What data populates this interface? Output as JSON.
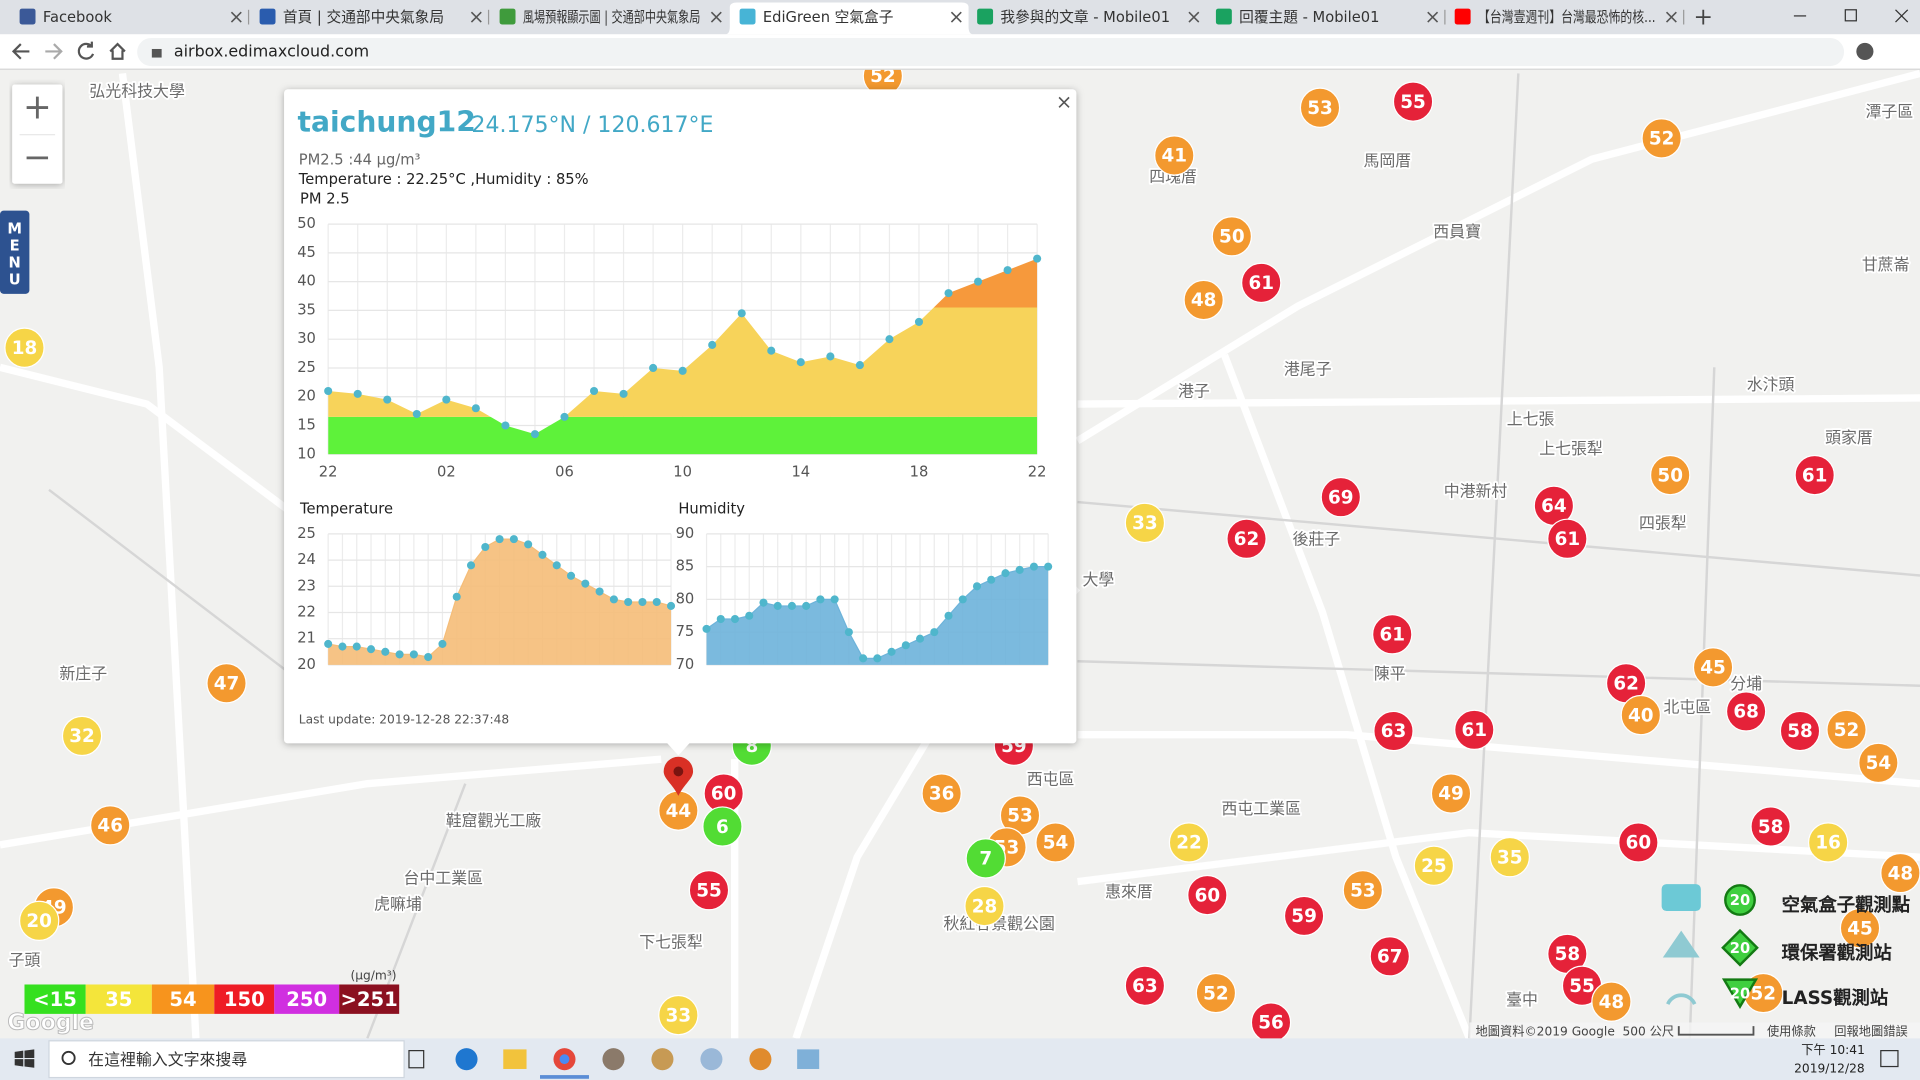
{
  "browser": {
    "tabs": [
      "Facebook",
      "首頁 | 交通部中央氣象局",
      "風場預報顯示圖 | 交通部中央氣象局",
      "EdiGreen 空氣盒子",
      "我參與的文章 - Mobile01",
      "回覆主題 - Mobile01",
      "【台灣壹週刊】台灣最恐怖的核..."
    ],
    "address": "airbox.edimaxcloud.com"
  },
  "map": {
    "zoom_in": "+",
    "zoom_out": "−",
    "menu": "MENU",
    "google": "Google",
    "attribution": "地圖資料©2019 Google",
    "scale": "500 公尺",
    "terms": "使用條款",
    "report": "回報地圖錯誤",
    "marker_colors": [
      {
        "max": 15.4,
        "color": "#52dc34"
      },
      {
        "max": 35.4,
        "color": "#f6d547"
      },
      {
        "max": 54.4,
        "color": "#f3992f"
      },
      {
        "max": 150.4,
        "color": "#e52239"
      }
    ],
    "markers": [
      52,
      53,
      55,
      52,
      41,
      50,
      61,
      48,
      18,
      50,
      61,
      69,
      33,
      62,
      64,
      61,
      61,
      45,
      62,
      40,
      68,
      63,
      61,
      58,
      52,
      54,
      47,
      32,
      59,
      8,
      60,
      44,
      6,
      36,
      53,
      54,
      53,
      7,
      22,
      49,
      35,
      25,
      53,
      60,
      58,
      16,
      48,
      46,
      49,
      20,
      55,
      60,
      59,
      28,
      67,
      58,
      55,
      48,
      63,
      52,
      56,
      33,
      45,
      52
    ],
    "places": [
      "弘光科技大學",
      "馬岡厝",
      "西員寶",
      "港尾子",
      "港子",
      "上七張",
      "上七張犁",
      "水汴頭",
      "頭家厝",
      "中港新村",
      "後莊子",
      "四張犁",
      "陳平",
      "北屯區",
      "分埔",
      "西屯工業區",
      "西屯區",
      "惠來厝",
      "台中工業區",
      "虎嘛埔",
      "下七張犁",
      "新庄子",
      "臺中",
      "甘蔗崙",
      "潭子區",
      "大學",
      "鞋窟觀光工廠",
      "四塊厝",
      "子頭",
      "秋紅谷景觀公園"
    ]
  },
  "legend": {
    "unit": "(μg/m³)",
    "items": [
      {
        "label": "<15",
        "color": "#35e01f"
      },
      {
        "label": "35",
        "color": "#f4e53a"
      },
      {
        "label": "54",
        "color": "#f7941d"
      },
      {
        "label": "150",
        "color": "#ee1c25"
      },
      {
        "label": "250",
        "color": "#d02fe0"
      },
      {
        "label": ">251",
        "color": "#8b1020"
      }
    ]
  },
  "station_legend": {
    "sample": 20,
    "items": [
      "空氣盒子觀測點",
      "環保署觀測站",
      "LASS觀測站"
    ]
  },
  "popup": {
    "title": "taichung12",
    "coords": "24.175°N / 120.617°E",
    "pm": "PM2.5 :44 μg/m³",
    "readings": "Temperature : 22.25°C ,Humidity : 85%",
    "close": "×",
    "updated": "Last update: 2019-12-28 22:37:48"
  },
  "chart_data": [
    {
      "type": "area",
      "title": "PM 2.5",
      "categories": [
        "22",
        null,
        null,
        null,
        "02",
        null,
        null,
        null,
        "06",
        null,
        null,
        null,
        "10",
        null,
        null,
        null,
        "14",
        null,
        null,
        null,
        "18",
        null,
        null,
        null,
        "22"
      ],
      "values": [
        21,
        20.5,
        19.5,
        17,
        19.5,
        18,
        15,
        13.5,
        16.5,
        21,
        20.5,
        25,
        24.5,
        29,
        34.5,
        28,
        26,
        27,
        25.5,
        30,
        33,
        38,
        40,
        42,
        44
      ],
      "color_bands": [
        {
          "max": 16.5,
          "color": "#5ef23a"
        },
        {
          "max": 35.5,
          "color": "#f7d35a"
        },
        {
          "max": 55.5,
          "color": "#f6993c"
        }
      ],
      "marker_color": "#4fb6cc",
      "ylim": [
        10,
        50
      ],
      "yticks": [
        10,
        15,
        20,
        25,
        30,
        35,
        40,
        45,
        50
      ],
      "grid": true
    },
    {
      "type": "area",
      "title": "Temperature",
      "values": [
        20.8,
        20.7,
        20.7,
        20.6,
        20.5,
        20.4,
        20.4,
        20.3,
        20.8,
        22.6,
        23.8,
        24.5,
        24.8,
        24.8,
        24.6,
        24.2,
        23.8,
        23.4,
        23.1,
        22.8,
        22.5,
        22.4,
        22.4,
        22.4,
        22.25
      ],
      "color": "#f5bd78",
      "marker_color": "#4fb6cc",
      "ylim": [
        20,
        25
      ],
      "yticks": [
        20,
        21,
        22,
        23,
        24,
        25
      ],
      "grid": true
    },
    {
      "type": "area",
      "title": "Humidity",
      "values": [
        75.5,
        77,
        77,
        77.5,
        79.5,
        79,
        79,
        79,
        80,
        80,
        75,
        71,
        71,
        72,
        73,
        74,
        75,
        77.5,
        80,
        82,
        83,
        84,
        84.5,
        85,
        85
      ],
      "color": "#6db3da",
      "marker_color": "#4fb6cc",
      "ylim": [
        70,
        90
      ],
      "yticks": [
        70,
        75,
        80,
        85,
        90
      ],
      "grid": true
    }
  ],
  "taskbar": {
    "search": "在這裡輸入文字來搜尋",
    "time": "下午 10:41",
    "date": "2019/12/28"
  }
}
